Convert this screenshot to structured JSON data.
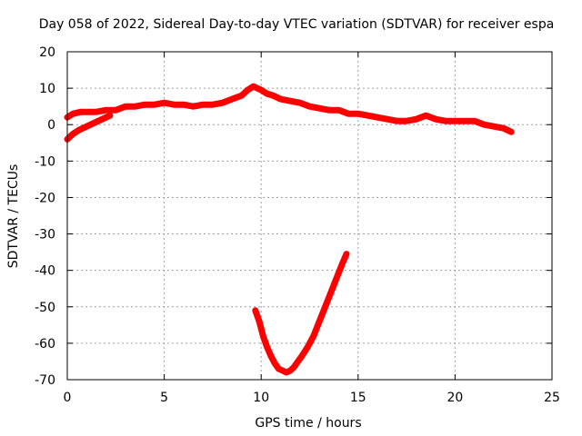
{
  "chart_data": {
    "type": "line",
    "title": "Day 058 of 2022, Sidereal Day-to-day VTEC variation (SDTVAR) for receiver espa",
    "xlabel": "GPS time / hours",
    "ylabel": "SDTVAR / TECUs",
    "xlim": [
      0,
      25
    ],
    "ylim": [
      -70,
      20
    ],
    "xticks": [
      0,
      5,
      10,
      15,
      20,
      25
    ],
    "yticks": [
      -70,
      -60,
      -50,
      -40,
      -30,
      -20,
      -10,
      0,
      10,
      20
    ],
    "grid": true,
    "line_color": "#ff0000",
    "series": [
      {
        "name": "upper-trace",
        "x": [
          0,
          0.3,
          0.7,
          1.0,
          1.5,
          2.0,
          2.5,
          3.0,
          3.5,
          4.0,
          4.5,
          5.0,
          5.5,
          6.0,
          6.5,
          7.0,
          7.5,
          8.0,
          8.5,
          9.0,
          9.3,
          9.6,
          9.8,
          10.0,
          10.3,
          10.6,
          11.0,
          11.5,
          12.0,
          12.5,
          13.0,
          13.5,
          14.0,
          14.5,
          15.0,
          15.5,
          16.0,
          16.5,
          17.0,
          17.5,
          18.0,
          18.5,
          19.0,
          19.5,
          20.0,
          20.5,
          21.0,
          21.5,
          22.0,
          22.5,
          22.9
        ],
        "y": [
          2,
          3,
          3.5,
          3.5,
          3.5,
          4,
          4,
          5,
          5,
          5.5,
          5.5,
          6,
          5.5,
          5.5,
          5,
          5.5,
          5.5,
          6,
          7,
          8,
          9.5,
          10.5,
          10,
          9.5,
          8.5,
          8,
          7,
          6.5,
          6,
          5,
          4.5,
          4,
          4,
          3,
          3,
          2.5,
          2,
          1.5,
          1,
          1,
          1.5,
          2.5,
          1.5,
          1,
          1,
          1,
          1,
          0,
          -0.5,
          -1,
          -2
        ]
      },
      {
        "name": "lower-branch",
        "x": [
          0,
          0.3,
          0.6,
          1.0,
          1.4,
          1.8,
          2.2
        ],
        "y": [
          -4,
          -2.5,
          -1.5,
          -0.5,
          0.5,
          1.5,
          2.5
        ]
      },
      {
        "name": "dip-trace",
        "x": [
          9.7,
          9.9,
          10.1,
          10.3,
          10.5,
          10.7,
          10.9,
          11.1,
          11.3,
          11.5,
          11.7,
          11.9,
          12.1,
          12.4,
          12.7,
          13.0,
          13.3,
          13.6,
          13.9,
          14.2,
          14.4
        ],
        "y": [
          -51,
          -54,
          -58,
          -61,
          -63.5,
          -65.5,
          -67,
          -67.5,
          -68,
          -67.5,
          -66.5,
          -65,
          -63.5,
          -61,
          -58,
          -54,
          -50,
          -46,
          -42,
          -38,
          -35.5
        ]
      }
    ]
  }
}
